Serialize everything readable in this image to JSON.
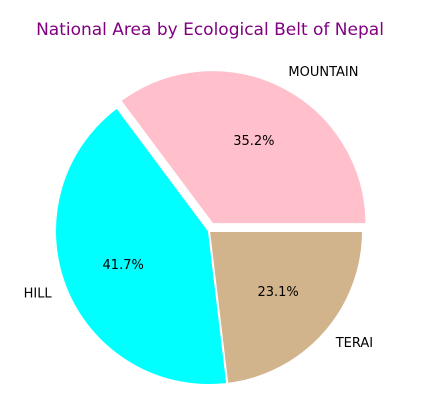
{
  "chart_data": {
    "type": "pie",
    "title": "National Area by Ecological Belt of Nepal",
    "title_color": "#800080",
    "categories": [
      "MOUNTAIN",
      "HILL",
      "TERAI"
    ],
    "values": [
      35.2,
      41.7,
      23.1
    ],
    "value_labels": [
      "35.2%",
      "41.7%",
      "23.1%"
    ],
    "colors": [
      "#FFC0CB",
      "#00FFFF",
      "#D2B48C"
    ],
    "explode": [
      0.05,
      0,
      0
    ],
    "start_angle_deg": 0,
    "direction": "counterclockwise",
    "legend": "none"
  }
}
